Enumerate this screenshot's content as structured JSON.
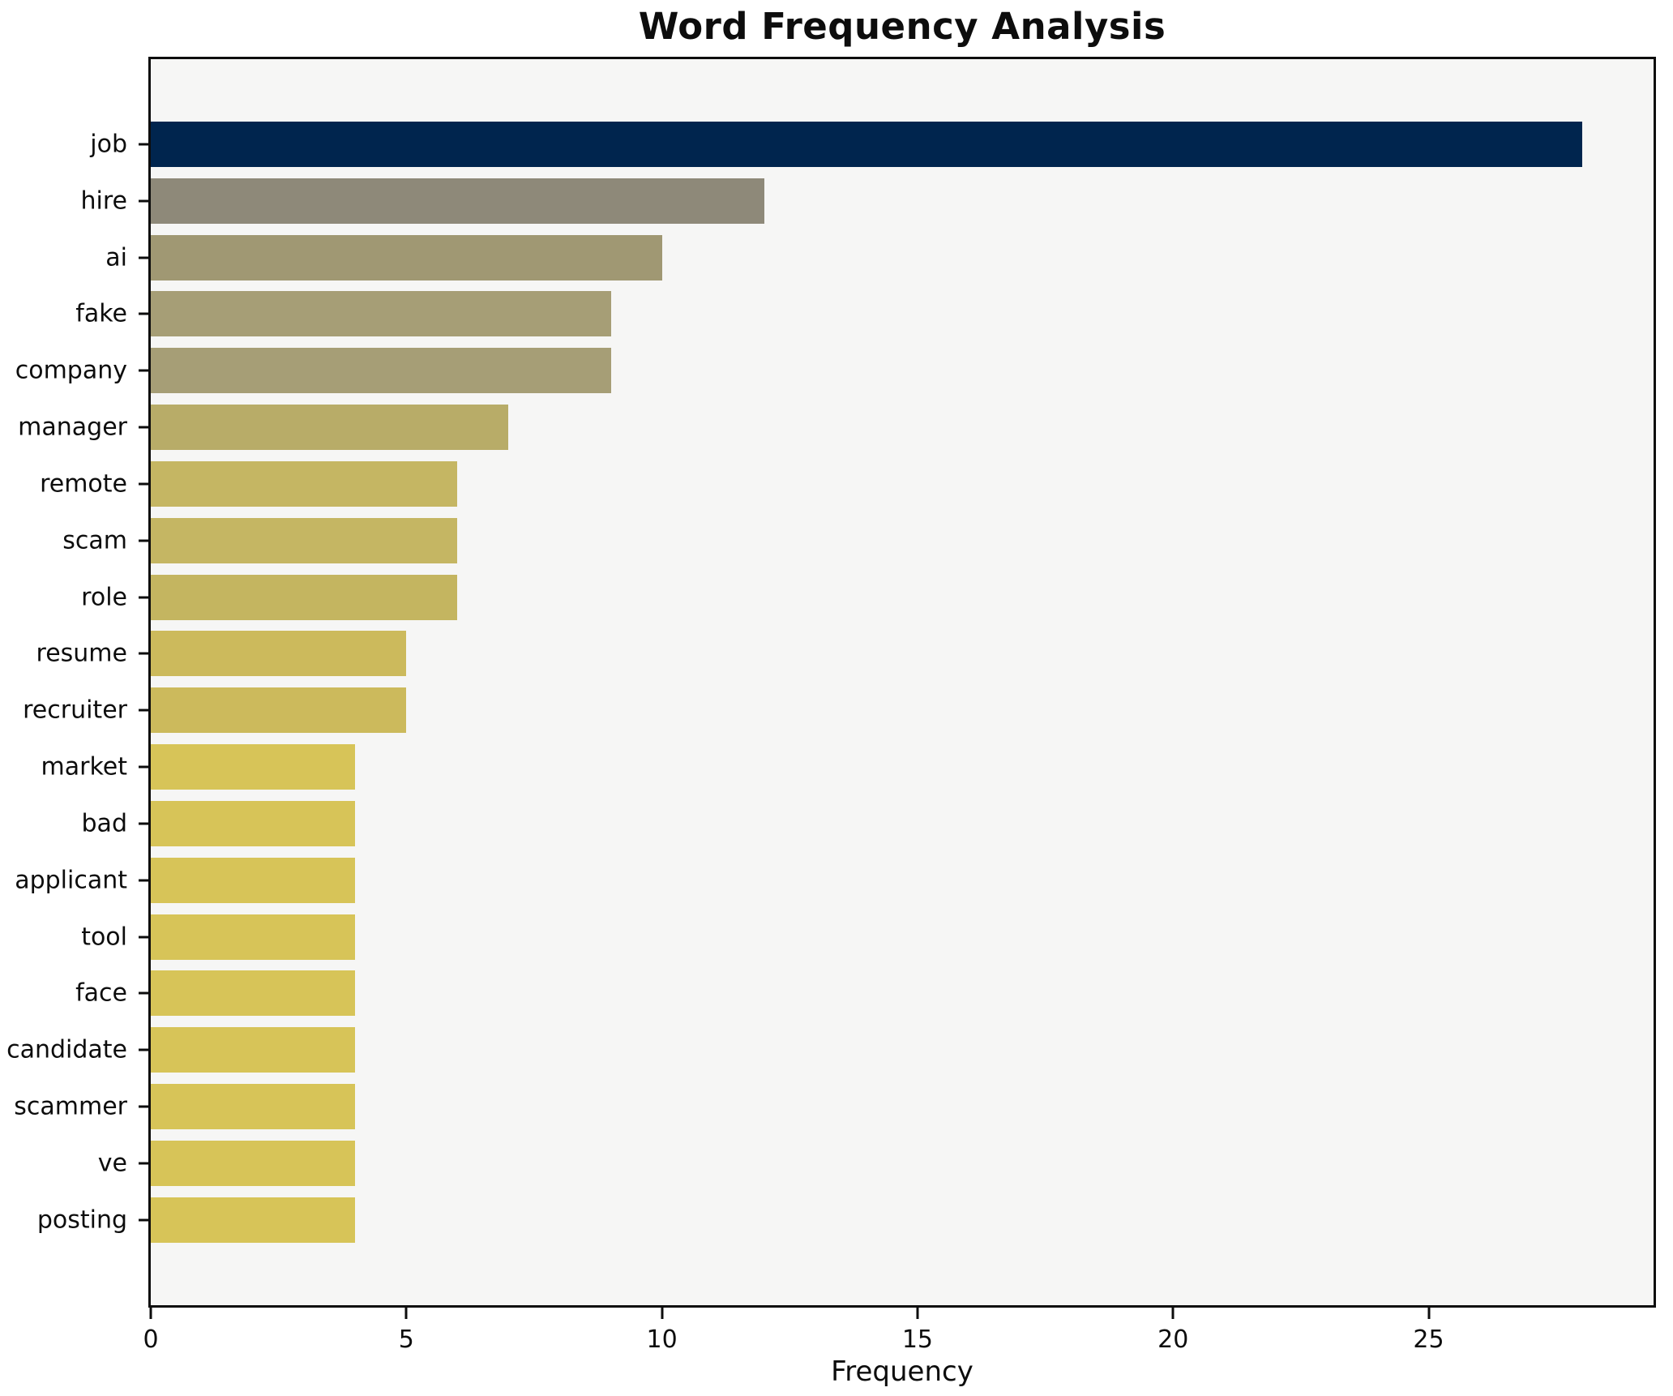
{
  "chart_data": {
    "type": "bar",
    "orientation": "horizontal",
    "title": "Word Frequency Analysis",
    "xlabel": "Frequency",
    "ylabel": "",
    "xlim": [
      0,
      29.4
    ],
    "x_ticks": [
      0,
      5,
      10,
      15,
      20,
      25
    ],
    "grid": false,
    "legend": false,
    "plot_background": "#f6f6f5",
    "spine_color": "#0d0d0d",
    "categories": [
      "job",
      "hire",
      "ai",
      "fake",
      "company",
      "manager",
      "remote",
      "scam",
      "role",
      "resume",
      "recruiter",
      "market",
      "bad",
      "applicant",
      "tool",
      "face",
      "candidate",
      "scammer",
      "ve",
      "posting"
    ],
    "values": [
      28,
      12,
      10,
      9,
      9,
      7,
      6,
      6,
      6,
      5,
      5,
      4,
      4,
      4,
      4,
      4,
      4,
      4,
      4,
      4
    ],
    "bars": [
      {
        "label": "job",
        "value": 28,
        "color": "#00254e"
      },
      {
        "label": "hire",
        "value": 12,
        "color": "#8e8979"
      },
      {
        "label": "ai",
        "value": 10,
        "color": "#a09873"
      },
      {
        "label": "fake",
        "value": 9,
        "color": "#a69e76"
      },
      {
        "label": "company",
        "value": 9,
        "color": "#a69e76"
      },
      {
        "label": "manager",
        "value": 7,
        "color": "#b8ac68"
      },
      {
        "label": "remote",
        "value": 6,
        "color": "#c5b663"
      },
      {
        "label": "scam",
        "value": 6,
        "color": "#c5b663"
      },
      {
        "label": "role",
        "value": 6,
        "color": "#c4b560"
      },
      {
        "label": "resume",
        "value": 5,
        "color": "#ccba5c"
      },
      {
        "label": "recruiter",
        "value": 5,
        "color": "#ccba5c"
      },
      {
        "label": "market",
        "value": 4,
        "color": "#d7c458"
      },
      {
        "label": "bad",
        "value": 4,
        "color": "#d7c458"
      },
      {
        "label": "applicant",
        "value": 4,
        "color": "#d7c458"
      },
      {
        "label": "tool",
        "value": 4,
        "color": "#d7c458"
      },
      {
        "label": "face",
        "value": 4,
        "color": "#d7c458"
      },
      {
        "label": "candidate",
        "value": 4,
        "color": "#d7c458"
      },
      {
        "label": "scammer",
        "value": 4,
        "color": "#d7c458"
      },
      {
        "label": "ve",
        "value": 4,
        "color": "#d7c458"
      },
      {
        "label": "posting",
        "value": 4,
        "color": "#d7c458"
      }
    ]
  }
}
